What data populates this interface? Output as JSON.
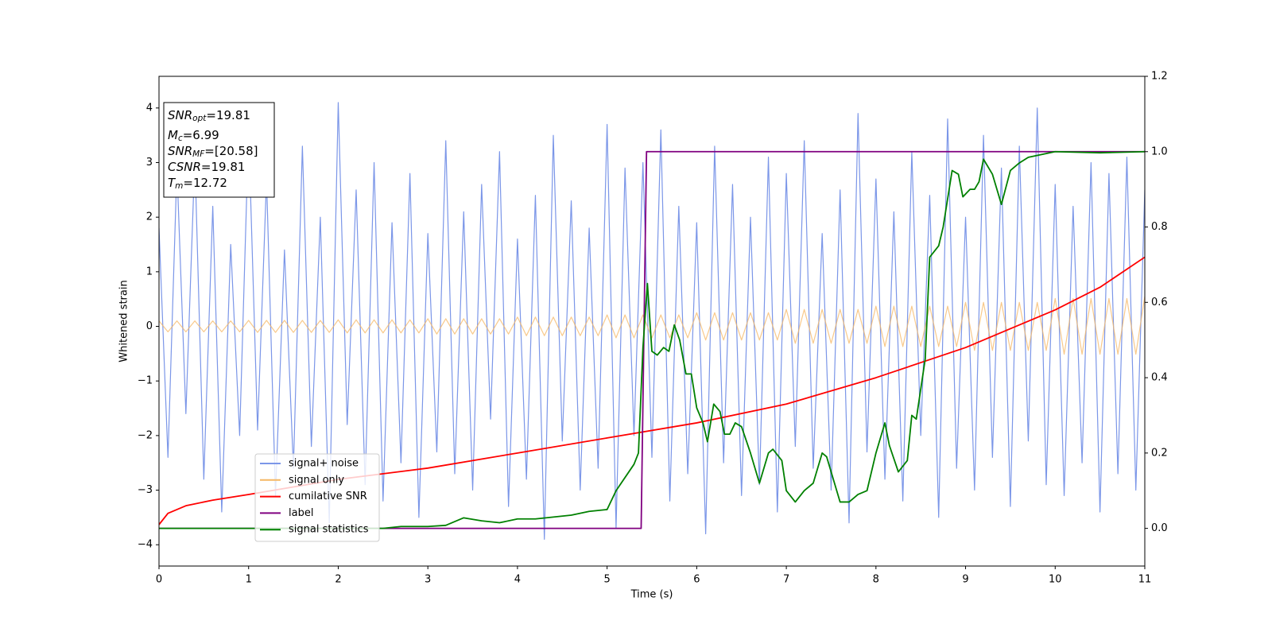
{
  "chart_data": {
    "type": "line",
    "xlabel": "Time (s)",
    "ylabel": "Whitened strain",
    "xlim": [
      0,
      11
    ],
    "ylim": [
      -4.39,
      4.58
    ],
    "y2lim": [
      -0.1,
      1.2
    ],
    "xticks": [
      0,
      1,
      2,
      3,
      4,
      5,
      6,
      7,
      8,
      9,
      10,
      11
    ],
    "yticks": [
      {
        "value": -4,
        "label": "−4"
      },
      {
        "value": -3,
        "label": "−3"
      },
      {
        "value": -2,
        "label": "−2"
      },
      {
        "value": -1,
        "label": "−1"
      },
      0,
      1,
      2,
      3,
      4
    ],
    "y2ticks": [
      {
        "value": 0,
        "label": "0.0"
      },
      0.2,
      0.4,
      0.6,
      0.8,
      {
        "value": 1,
        "label": "1.0"
      },
      1.2
    ],
    "x": [
      0,
      0.1,
      0.2,
      0.3,
      0.4,
      0.5,
      0.6,
      0.7,
      0.8,
      0.9,
      1,
      1.1,
      1.2,
      1.3,
      1.4,
      1.5,
      1.6,
      1.7,
      1.8,
      1.9,
      2,
      2.1,
      2.2,
      2.3,
      2.4,
      2.5,
      2.6,
      2.7,
      2.8,
      2.9,
      3,
      3.1,
      3.2,
      3.3,
      3.4,
      3.5,
      3.6,
      3.7,
      3.8,
      3.9,
      4,
      4.1,
      4.2,
      4.3,
      4.4,
      4.5,
      4.6,
      4.7,
      4.8,
      4.9,
      5,
      5.1,
      5.2,
      5.3,
      5.4,
      5.5,
      5.6,
      5.7,
      5.8,
      5.9,
      6,
      6.1,
      6.2,
      6.3,
      6.4,
      6.5,
      6.6,
      6.7,
      6.8,
      6.9,
      7,
      7.1,
      7.2,
      7.3,
      7.4,
      7.5,
      7.6,
      7.7,
      7.8,
      7.9,
      8,
      8.1,
      8.2,
      8.3,
      8.4,
      8.5,
      8.6,
      8.7,
      8.8,
      8.9,
      9,
      9.1,
      9.2,
      9.3,
      9.4,
      9.5,
      9.6,
      9.7,
      9.8,
      9.9,
      10,
      10.1,
      10.2,
      10.3,
      10.4,
      10.5,
      10.6,
      10.7,
      10.8,
      10.9,
      11
    ],
    "series": [
      {
        "name": "signal+ noise",
        "color": "#7b96e8",
        "values": [
          1.8,
          -2.4,
          2.9,
          -1.6,
          3.1,
          -2.8,
          2.2,
          -3.4,
          1.5,
          -2.0,
          3.6,
          -1.9,
          2.7,
          -3.1,
          1.4,
          -2.6,
          3.3,
          -2.2,
          2.0,
          -3.6,
          4.1,
          -1.8,
          2.5,
          -2.9,
          3.0,
          -3.2,
          1.9,
          -2.5,
          2.8,
          -3.5,
          1.7,
          -2.3,
          3.4,
          -2.7,
          2.1,
          -3.0,
          2.6,
          -1.7,
          3.2,
          -3.3,
          1.6,
          -2.8,
          2.4,
          -3.9,
          3.5,
          -2.1,
          2.3,
          -3.0,
          1.8,
          -2.6,
          3.7,
          -3.7,
          2.9,
          -2.0,
          3.0,
          -2.4,
          3.6,
          -3.2,
          2.2,
          -2.7,
          1.9,
          -3.8,
          3.3,
          -2.5,
          2.6,
          -3.1,
          2.0,
          -2.9,
          3.1,
          -3.4,
          2.8,
          -2.2,
          3.4,
          -2.6,
          1.7,
          -3.0,
          2.5,
          -3.6,
          3.9,
          -2.3,
          2.7,
          -2.8,
          2.1,
          -3.2,
          3.2,
          -2.0,
          2.4,
          -3.5,
          3.8,
          -2.6,
          2.0,
          -3.0,
          3.5,
          -2.4,
          2.9,
          -3.3,
          3.3,
          -2.1,
          4.0,
          -2.9,
          2.6,
          -3.1,
          2.2,
          -2.5,
          3.0,
          -3.4,
          2.8,
          -2.7,
          3.1,
          -3.0,
          2.5
        ]
      },
      {
        "name": "signal only",
        "color": "#f5b764",
        "values": [
          0.1,
          -0.1,
          0.1,
          -0.1,
          0.1,
          -0.1,
          0.1,
          -0.1,
          0.1,
          -0.1,
          0.11,
          -0.11,
          0.11,
          -0.11,
          0.11,
          -0.11,
          0.11,
          -0.11,
          0.11,
          -0.11,
          0.12,
          -0.12,
          0.12,
          -0.12,
          0.12,
          -0.12,
          0.12,
          -0.12,
          0.12,
          -0.12,
          0.14,
          -0.14,
          0.14,
          -0.14,
          0.14,
          -0.14,
          0.14,
          -0.14,
          0.14,
          -0.14,
          0.17,
          -0.17,
          0.17,
          -0.17,
          0.17,
          -0.17,
          0.17,
          -0.17,
          0.17,
          -0.17,
          0.21,
          -0.21,
          0.21,
          -0.21,
          0.21,
          -0.21,
          0.21,
          -0.21,
          0.21,
          -0.21,
          0.25,
          -0.25,
          0.25,
          -0.25,
          0.25,
          -0.25,
          0.25,
          -0.25,
          0.25,
          -0.25,
          0.31,
          -0.31,
          0.31,
          -0.31,
          0.31,
          -0.31,
          0.31,
          -0.31,
          0.31,
          -0.31,
          0.37,
          -0.37,
          0.37,
          -0.37,
          0.37,
          -0.37,
          0.37,
          -0.37,
          0.37,
          -0.37,
          0.44,
          -0.44,
          0.44,
          -0.44,
          0.44,
          -0.44,
          0.44,
          -0.44,
          0.44,
          -0.44,
          0.51,
          -0.51,
          0.51,
          -0.51,
          0.51,
          -0.51,
          0.51,
          -0.51,
          0.51,
          -0.51,
          0.55
        ]
      },
      {
        "name": "cumilative SNR",
        "color": "#ff0000",
        "axis": "y2",
        "x": [
          0,
          0.1,
          0.3,
          0.6,
          1,
          1.5,
          2,
          3,
          4,
          5,
          6,
          7,
          8,
          9,
          9.5,
          10,
          10.5,
          11
        ],
        "values": [
          0.01,
          0.04,
          0.06,
          0.075,
          0.09,
          0.11,
          0.13,
          0.16,
          0.2,
          0.24,
          0.28,
          0.33,
          0.4,
          0.48,
          0.53,
          0.58,
          0.64,
          0.72
        ]
      },
      {
        "name": "label",
        "color": "#800080",
        "axis": "y2",
        "x": [
          0,
          5.38,
          5.44,
          11
        ],
        "values": [
          0,
          0,
          1,
          1
        ]
      },
      {
        "name": "signal statistics",
        "color": "#008000",
        "axis": "y2",
        "x": [
          0,
          1,
          2,
          2.5,
          2.7,
          3,
          3.2,
          3.4,
          3.6,
          3.8,
          4,
          4.2,
          4.4,
          4.6,
          4.8,
          5,
          5.1,
          5.3,
          5.35,
          5.4,
          5.45,
          5.5,
          5.56,
          5.63,
          5.69,
          5.75,
          5.81,
          5.88,
          5.94,
          6,
          6.07,
          6.12,
          6.19,
          6.26,
          6.31,
          6.37,
          6.43,
          6.5,
          6.6,
          6.7,
          6.8,
          6.85,
          6.95,
          7,
          7.1,
          7.2,
          7.3,
          7.4,
          7.45,
          7.6,
          7.7,
          7.8,
          7.9,
          8,
          8.1,
          8.15,
          8.25,
          8.35,
          8.4,
          8.45,
          8.55,
          8.6,
          8.7,
          8.75,
          8.85,
          8.92,
          8.97,
          9.05,
          9.1,
          9.15,
          9.2,
          9.3,
          9.4,
          9.5,
          9.6,
          9.7,
          9.9,
          10,
          10.5,
          11
        ],
        "values": [
          0,
          0,
          0,
          0,
          0.005,
          0.005,
          0.008,
          0.028,
          0.02,
          0.015,
          0.025,
          0.025,
          0.03,
          0.035,
          0.045,
          0.05,
          0.1,
          0.17,
          0.2,
          0.48,
          0.65,
          0.47,
          0.46,
          0.48,
          0.47,
          0.54,
          0.5,
          0.41,
          0.41,
          0.32,
          0.28,
          0.23,
          0.33,
          0.31,
          0.25,
          0.25,
          0.28,
          0.27,
          0.2,
          0.12,
          0.2,
          0.21,
          0.18,
          0.1,
          0.07,
          0.1,
          0.12,
          0.2,
          0.19,
          0.07,
          0.07,
          0.09,
          0.1,
          0.2,
          0.28,
          0.22,
          0.15,
          0.18,
          0.3,
          0.29,
          0.45,
          0.72,
          0.75,
          0.8,
          0.95,
          0.94,
          0.88,
          0.9,
          0.9,
          0.92,
          0.98,
          0.94,
          0.86,
          0.95,
          0.97,
          0.985,
          0.995,
          1,
          0.997,
          1
        ]
      }
    ],
    "annotations": [
      {
        "base": "SNR",
        "sub": "opt",
        "text": "=19.81"
      },
      {
        "base": "M",
        "sub": "c",
        "text": "=6.99"
      },
      {
        "base": "SNR",
        "sub": "MF",
        "text": "=[20.58]"
      },
      {
        "base": "CSNR",
        "text": "=19.81"
      },
      {
        "base": "T",
        "sub": "m",
        "text": "=12.72"
      }
    ]
  }
}
